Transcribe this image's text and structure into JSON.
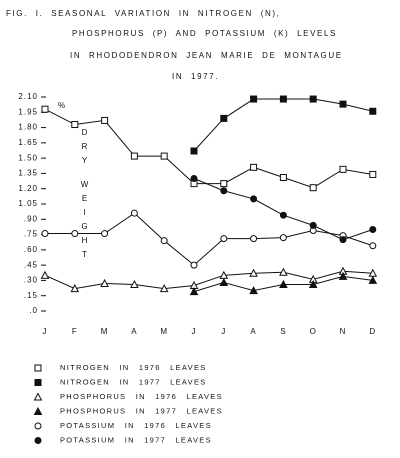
{
  "chart_data": {
    "type": "line",
    "title_lines": [
      "FIG. I.   SEASONAL VARIATION IN NITROGEN (N),",
      "PHOSPHORUS (P) AND POTASSIUM (K) LEVELS",
      "IN RHODODENDRON JEAN MARIE DE MONTAGUE",
      "IN 1977."
    ],
    "y_unit": "%",
    "ylabel": "DRY WEIGHT",
    "categories": [
      "J",
      "F",
      "M",
      "A",
      "M",
      "J",
      "J",
      "A",
      "S",
      "O",
      "N",
      "D"
    ],
    "ylim": [
      0,
      2.1
    ],
    "yticks": [
      {
        "value": 2.1,
        "label": "2.10"
      },
      1.95,
      {
        "value": 1.8,
        "label": "1.80"
      },
      1.65,
      {
        "value": 1.5,
        "label": "1.50"
      },
      1.35,
      {
        "value": 1.2,
        "label": "1.20"
      },
      1.05,
      {
        "value": 0.9,
        "label": ".90"
      },
      {
        "value": 0.75,
        "label": ".75"
      },
      {
        "value": 0.6,
        "label": ".60"
      },
      {
        "value": 0.45,
        "label": ".45"
      },
      {
        "value": 0.3,
        "label": ".30"
      },
      {
        "value": 0.15,
        "label": ".15"
      },
      {
        "value": 0,
        "label": ".0"
      }
    ],
    "series": [
      {
        "name": "NITROGEN IN 1976 LEAVES",
        "marker": "square",
        "filled": false,
        "color": "#111",
        "values": [
          1.98,
          1.83,
          1.87,
          1.52,
          1.52,
          1.25,
          1.25,
          1.41,
          1.31,
          1.21,
          1.39,
          1.34
        ]
      },
      {
        "name": "NITROGEN IN 1977 LEAVES",
        "marker": "square",
        "filled": true,
        "color": "#111",
        "values": [
          null,
          null,
          null,
          null,
          null,
          1.57,
          1.89,
          2.08,
          2.08,
          2.08,
          2.03,
          1.96
        ]
      },
      {
        "name": "PHOSPHORUS IN 1976 LEAVES",
        "marker": "triangle",
        "filled": false,
        "color": "#111",
        "values": [
          0.35,
          0.22,
          0.27,
          0.26,
          0.22,
          0.25,
          0.35,
          0.37,
          0.38,
          0.31,
          0.39,
          0.37
        ]
      },
      {
        "name": "PHOSPHORUS IN 1977 LEAVES",
        "marker": "triangle",
        "filled": true,
        "color": "#111",
        "values": [
          null,
          null,
          null,
          null,
          null,
          0.19,
          0.28,
          0.2,
          0.26,
          0.26,
          0.34,
          0.3
        ]
      },
      {
        "name": "POTASSIUM IN 1976 LEAVES",
        "marker": "circle",
        "filled": false,
        "color": "#111",
        "values": [
          0.76,
          0.76,
          0.76,
          0.96,
          0.69,
          0.45,
          0.71,
          0.71,
          0.72,
          0.79,
          0.74,
          0.64
        ]
      },
      {
        "name": "POTASSIUM IN 1977 LEAVES",
        "marker": "circle",
        "filled": true,
        "color": "#111",
        "values": [
          null,
          null,
          null,
          null,
          null,
          1.3,
          1.18,
          1.1,
          0.94,
          0.84,
          0.7,
          0.8
        ]
      }
    ]
  }
}
